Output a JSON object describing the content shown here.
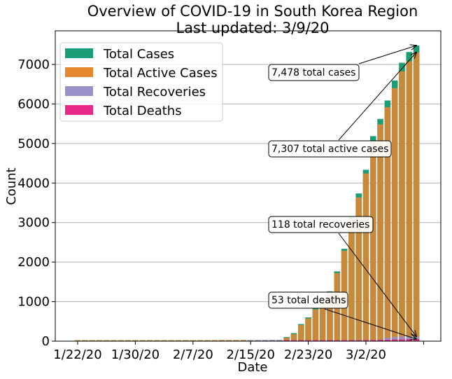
{
  "chart_data": {
    "type": "bar",
    "title": "Overview of COVID-19 in South Korea Region",
    "subtitle": "Last updated: 3/9/20",
    "xlabel": "Date",
    "ylabel": "Count",
    "ylim": [
      0,
      7850
    ],
    "yticks": [
      0,
      1000,
      2000,
      3000,
      4000,
      5000,
      6000,
      7000
    ],
    "xtick_labels": [
      "1/22/20",
      "1/30/20",
      "2/7/20",
      "2/15/20",
      "2/23/20",
      "3/2/20"
    ],
    "grid": "horizontal",
    "legend_position": "top-left",
    "categories": [
      "1/22/20",
      "1/23/20",
      "1/24/20",
      "1/25/20",
      "1/26/20",
      "1/27/20",
      "1/28/20",
      "1/29/20",
      "1/30/20",
      "1/31/20",
      "2/1/20",
      "2/2/20",
      "2/3/20",
      "2/4/20",
      "2/5/20",
      "2/6/20",
      "2/7/20",
      "2/8/20",
      "2/9/20",
      "2/10/20",
      "2/11/20",
      "2/12/20",
      "2/13/20",
      "2/14/20",
      "2/15/20",
      "2/16/20",
      "2/17/20",
      "2/18/20",
      "2/19/20",
      "2/20/20",
      "2/21/20",
      "2/22/20",
      "2/23/20",
      "2/24/20",
      "2/25/20",
      "2/26/20",
      "2/27/20",
      "2/28/20",
      "2/29/20",
      "3/1/20",
      "3/2/20",
      "3/3/20",
      "3/4/20",
      "3/5/20",
      "3/6/20",
      "3/7/20",
      "3/8/20",
      "3/9/20"
    ],
    "series": [
      {
        "name": "Total Cases",
        "color": "#1b9e77",
        "values": [
          1,
          1,
          2,
          2,
          3,
          4,
          4,
          4,
          4,
          11,
          12,
          15,
          15,
          16,
          19,
          23,
          24,
          24,
          25,
          27,
          28,
          28,
          28,
          28,
          28,
          29,
          30,
          31,
          31,
          104,
          204,
          433,
          602,
          833,
          977,
          1261,
          1766,
          2337,
          3150,
          3736,
          4335,
          5186,
          5621,
          6088,
          6593,
          7041,
          7314,
          7478
        ]
      },
      {
        "name": "Total Active Cases",
        "color": "#e6862f",
        "values": [
          1,
          1,
          2,
          2,
          3,
          4,
          4,
          4,
          4,
          11,
          12,
          15,
          15,
          16,
          19,
          23,
          24,
          24,
          25,
          27,
          28,
          28,
          28,
          28,
          19,
          20,
          20,
          21,
          20,
          86,
          180,
          411,
          577,
          806,
          949,
          1224,
          1722,
          2287,
          3087,
          3637,
          4243,
          5061,
          5485,
          5919,
          6402,
          6825,
          7082,
          7307
        ]
      },
      {
        "name": "Total Recoveries",
        "color": "#9b8fc8",
        "values": [
          0,
          0,
          0,
          0,
          0,
          0,
          0,
          0,
          0,
          0,
          0,
          0,
          0,
          0,
          0,
          0,
          0,
          0,
          0,
          0,
          0,
          0,
          0,
          0,
          9,
          9,
          10,
          10,
          12,
          16,
          16,
          16,
          18,
          18,
          22,
          22,
          22,
          22,
          28,
          30,
          30,
          30,
          41,
          88,
          108,
          118,
          118,
          118
        ]
      },
      {
        "name": "Total Deaths",
        "color": "#e7298a",
        "values": [
          0,
          0,
          0,
          0,
          0,
          0,
          0,
          0,
          0,
          0,
          0,
          0,
          0,
          0,
          0,
          0,
          0,
          0,
          0,
          0,
          0,
          0,
          0,
          0,
          0,
          0,
          0,
          0,
          0,
          1,
          2,
          2,
          6,
          8,
          10,
          12,
          13,
          13,
          16,
          17,
          28,
          28,
          35,
          35,
          42,
          44,
          50,
          53
        ]
      }
    ],
    "annotations": [
      {
        "text": "7,478 total cases",
        "series": "Total Cases",
        "target_index": 47,
        "target_value": 7478
      },
      {
        "text": "7,307 total active cases",
        "series": "Total Active Cases",
        "target_index": 47,
        "target_value": 7307
      },
      {
        "text": "118 total recoveries",
        "series": "Total Recoveries",
        "target_index": 47,
        "target_value": 118
      },
      {
        "text": "53 total deaths",
        "series": "Total Deaths",
        "target_index": 47,
        "target_value": 53
      }
    ]
  }
}
